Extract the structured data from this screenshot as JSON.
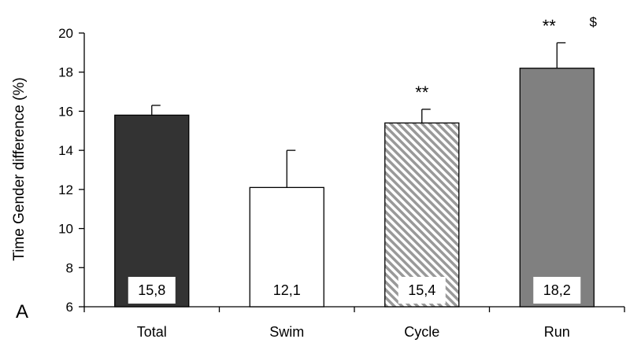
{
  "chart_data": {
    "type": "bar",
    "panel_letter": "A",
    "title": "",
    "xlabel": "",
    "ylabel": "Time Gender difference (%)",
    "ylim": [
      6,
      20
    ],
    "yticks": [
      6,
      8,
      10,
      12,
      14,
      16,
      18,
      20
    ],
    "grid": false,
    "categories": [
      "Total",
      "Swim",
      "Cycle",
      "Run"
    ],
    "values": [
      15.8,
      12.1,
      15.4,
      18.2
    ],
    "error_plus": [
      0.5,
      1.9,
      0.7,
      1.3
    ],
    "value_labels": [
      "15,8",
      "12,1",
      "15,4",
      "18,2"
    ],
    "bar_fills": [
      "solid-dark",
      "white",
      "diagonal-hatch",
      "solid-gray"
    ],
    "colors": {
      "dark": "#333333",
      "gray": "#808080",
      "hatch": "#999999",
      "axis": "#000000"
    },
    "annotations": [
      {
        "category": "Cycle",
        "text": "**"
      },
      {
        "category": "Run",
        "text": "**"
      },
      {
        "category": "Run",
        "text": "$"
      }
    ]
  }
}
